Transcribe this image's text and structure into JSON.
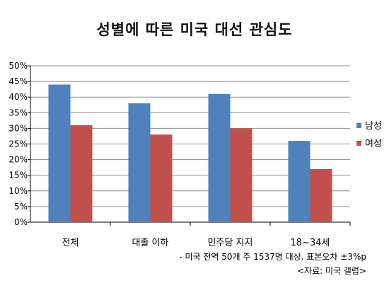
{
  "chart_data": {
    "type": "bar",
    "title": "성별에 따른 미국 대선 관심도",
    "categories": [
      "전체",
      "대졸 이하",
      "민주당 지지",
      "18~34세"
    ],
    "series": [
      {
        "name": "남성",
        "values": [
          44,
          38,
          41,
          26
        ],
        "color": "#4f81bd"
      },
      {
        "name": "여성",
        "values": [
          31,
          28,
          30,
          17
        ],
        "color": "#c0504d"
      }
    ],
    "ylim": [
      0,
      50
    ],
    "yticks": [
      "0%",
      "5%",
      "10%",
      "15%",
      "20%",
      "25%",
      "30%",
      "35%",
      "40%",
      "45%",
      "50%"
    ],
    "grid": true,
    "legend": "right"
  },
  "notes": {
    "survey": "- 미국 전역 50개 주 1537명 대상. 표본오차 ±3%p",
    "source": "<자료: 미국 갤럽>"
  }
}
